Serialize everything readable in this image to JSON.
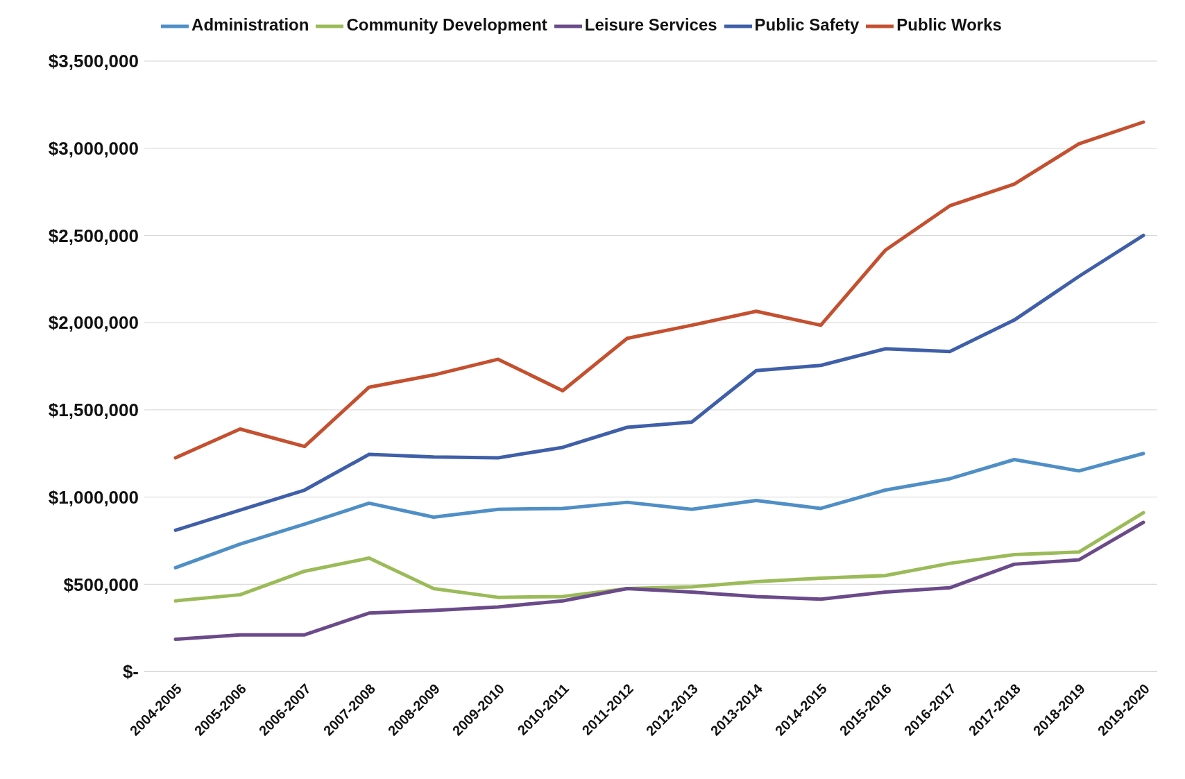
{
  "chart_data": {
    "type": "line",
    "categories": [
      "2004-2005",
      "2005-2006",
      "2006-2007",
      "2007-2008",
      "2008-2009",
      "2009-2010",
      "2010-2011",
      "2011-2012",
      "2012-2013",
      "2013-2014",
      "2014-2015",
      "2015-2016",
      "2016-2017",
      "2017-2018",
      "2018-2019",
      "2019-2020"
    ],
    "series": [
      {
        "name": "Public Safety",
        "color": "#3f5fa8",
        "values": [
          810000,
          925000,
          1040000,
          1245000,
          1230000,
          1225000,
          1285000,
          1400000,
          1430000,
          1725000,
          1755000,
          1850000,
          1835000,
          2015000,
          2265000,
          2500000
        ]
      },
      {
        "name": "Public Works",
        "color": "#c4502f",
        "values": [
          1225000,
          1390000,
          1290000,
          1630000,
          1700000,
          1790000,
          1610000,
          1910000,
          1985000,
          2065000,
          1985000,
          2415000,
          2670000,
          2795000,
          3025000,
          3150000
        ]
      },
      {
        "name": "Community Development",
        "color": "#9bbb59",
        "values": [
          405000,
          440000,
          575000,
          650000,
          475000,
          425000,
          430000,
          475000,
          485000,
          515000,
          535000,
          550000,
          620000,
          670000,
          685000,
          910000
        ]
      },
      {
        "name": "Leisure Services",
        "color": "#6b4a8a",
        "values": [
          185000,
          210000,
          210000,
          335000,
          350000,
          370000,
          405000,
          475000,
          455000,
          430000,
          415000,
          455000,
          480000,
          615000,
          640000,
          855000
        ]
      },
      {
        "name": "Administration",
        "color": "#4f8fc6",
        "values": [
          595000,
          730000,
          845000,
          965000,
          885000,
          930000,
          935000,
          970000,
          930000,
          980000,
          935000,
          1040000,
          1105000,
          1215000,
          1150000,
          1250000
        ]
      }
    ],
    "ylim": [
      0,
      3500000
    ],
    "yticks": [
      {
        "value": 0,
        "label": "$-"
      },
      {
        "value": 500000,
        "label": "$500,000"
      },
      {
        "value": 1000000,
        "label": "$1,000,000"
      },
      {
        "value": 1500000,
        "label": "$1,500,000"
      },
      {
        "value": 2000000,
        "label": "$2,000,000"
      },
      {
        "value": 2500000,
        "label": "$2,500,000"
      },
      {
        "value": 3000000,
        "label": "$3,000,000"
      },
      {
        "value": 3500000,
        "label": "$3,500,000"
      }
    ],
    "grid": "y",
    "legend": "top",
    "marker": "none",
    "line_style": "solid"
  }
}
